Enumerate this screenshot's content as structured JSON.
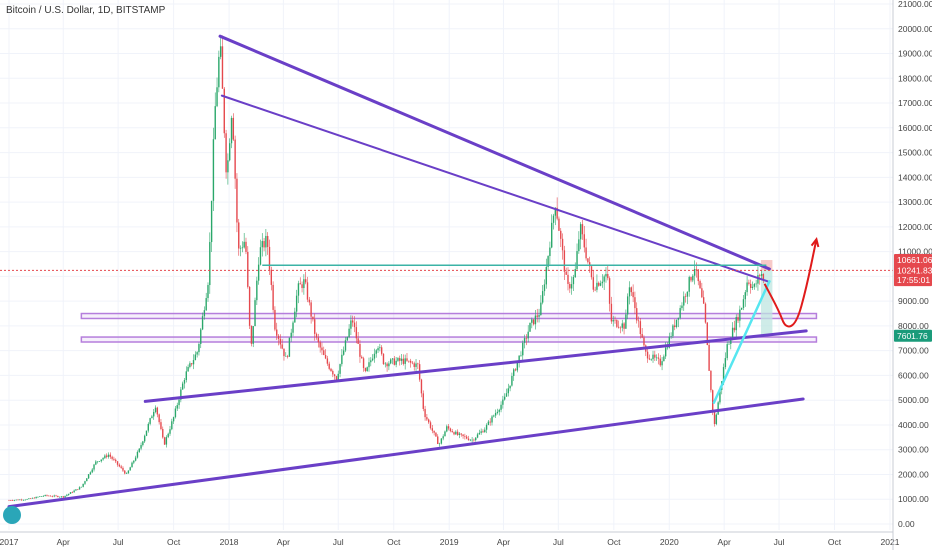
{
  "header": {
    "symbol_title": "Bitcoin / U.S. Dollar, 1D, BITSTAMP"
  },
  "colors": {
    "up_candle": "#2aa76a",
    "down_candle": "#e5484d",
    "trendline": "#6a3fc7",
    "channel_box": "#b57edc",
    "teal_line": "#3bb3a6",
    "cyan_trend": "#56e6f0",
    "projection": "#e01b1b",
    "current_price_line": "#e5484d",
    "short_zone_top": "#f4b7b4",
    "short_zone_bottom": "#bfe6e0"
  },
  "chart_data": {
    "type": "candlestick",
    "title": "Bitcoin / U.S. Dollar, 1D, BITSTAMP",
    "x_ticks": [
      "2017",
      "Apr",
      "Jul",
      "Oct",
      "2018",
      "Apr",
      "Jul",
      "Oct",
      "2019",
      "Apr",
      "Jul",
      "Oct",
      "2020",
      "Apr",
      "Jul",
      "Oct",
      "2021"
    ],
    "y_ticks": [
      "21000.00",
      "20000.00",
      "19000.00",
      "18000.00",
      "17000.00",
      "16000.00",
      "15000.00",
      "14000.00",
      "13000.00",
      "12000.00",
      "11000.00",
      "10000.00",
      "9000.00",
      "8000.00",
      "7000.00",
      "6000.00",
      "5000.00",
      "4000.00",
      "3000.00",
      "2000.00",
      "1000.00",
      "0.00"
    ],
    "ylim": [
      0,
      21000
    ],
    "price_labels": [
      {
        "text": "10661.06",
        "color": "#e5484d",
        "value": 10661.06
      },
      {
        "text": "10241.83",
        "color": "#e5484d",
        "value": 10241.83
      },
      {
        "text": "17:55:01",
        "color": "#e5484d",
        "value": 9850
      },
      {
        "text": "7601.76",
        "color": "#1a9b7a",
        "value": 7601.76
      }
    ],
    "price_path": [
      [
        "2017-01-01",
        960
      ],
      [
        "2017-02-01",
        1000
      ],
      [
        "2017-03-01",
        1150
      ],
      [
        "2017-04-01",
        1100
      ],
      [
        "2017-05-01",
        1500
      ],
      [
        "2017-05-25",
        2500
      ],
      [
        "2017-06-15",
        2800
      ],
      [
        "2017-07-15",
        2000
      ],
      [
        "2017-08-05",
        3000
      ],
      [
        "2017-09-01",
        4800
      ],
      [
        "2017-09-15",
        3200
      ],
      [
        "2017-10-01",
        4300
      ],
      [
        "2017-10-20",
        6000
      ],
      [
        "2017-11-10",
        7000
      ],
      [
        "2017-11-28",
        10000
      ],
      [
        "2017-12-08",
        16500
      ],
      [
        "2017-12-17",
        19400
      ],
      [
        "2017-12-28",
        14000
      ],
      [
        "2018-01-06",
        17000
      ],
      [
        "2018-01-16",
        11000
      ],
      [
        "2018-01-28",
        11500
      ],
      [
        "2018-02-06",
        6900
      ],
      [
        "2018-02-20",
        11000
      ],
      [
        "2018-03-05",
        11500
      ],
      [
        "2018-03-18",
        8000
      ],
      [
        "2018-04-06",
        6600
      ],
      [
        "2018-04-25",
        9500
      ],
      [
        "2018-05-06",
        9800
      ],
      [
        "2018-05-25",
        7500
      ],
      [
        "2018-06-10",
        6600
      ],
      [
        "2018-06-28",
        5900
      ],
      [
        "2018-07-24",
        8300
      ],
      [
        "2018-08-14",
        6000
      ],
      [
        "2018-09-04",
        7300
      ],
      [
        "2018-09-15",
        6500
      ],
      [
        "2018-10-15",
        6600
      ],
      [
        "2018-11-10",
        6400
      ],
      [
        "2018-11-20",
        4500
      ],
      [
        "2018-12-15",
        3200
      ],
      [
        "2018-12-28",
        3900
      ],
      [
        "2019-01-15",
        3600
      ],
      [
        "2019-02-08",
        3400
      ],
      [
        "2019-03-01",
        3850
      ],
      [
        "2019-04-02",
        5000
      ],
      [
        "2019-05-15",
        8000
      ],
      [
        "2019-06-01",
        8600
      ],
      [
        "2019-06-26",
        13000
      ],
      [
        "2019-07-16",
        9500
      ],
      [
        "2019-07-28",
        10000
      ],
      [
        "2019-08-06",
        12000
      ],
      [
        "2019-08-28",
        9600
      ],
      [
        "2019-09-20",
        10100
      ],
      [
        "2019-09-26",
        8200
      ],
      [
        "2019-10-20",
        8000
      ],
      [
        "2019-10-26",
        9800
      ],
      [
        "2019-11-22",
        6900
      ],
      [
        "2019-12-17",
        6500
      ],
      [
        "2020-01-06",
        7800
      ],
      [
        "2020-02-12",
        10400
      ],
      [
        "2020-02-28",
        8600
      ],
      [
        "2020-03-12",
        4800
      ],
      [
        "2020-03-16",
        4000
      ],
      [
        "2020-04-06",
        7200
      ],
      [
        "2020-04-30",
        8800
      ],
      [
        "2020-05-10",
        9900
      ],
      [
        "2020-05-20",
        9500
      ],
      [
        "2020-06-01",
        10200
      ],
      [
        "2020-06-07",
        9600
      ]
    ]
  },
  "annotations": {
    "trendlines": [
      {
        "name": "upper-downtrend",
        "from": [
          "2017-12-17",
          19700
        ],
        "to": [
          "2020-06-15",
          10300
        ],
        "weight": "thick"
      },
      {
        "name": "inner-downtrend",
        "from": [
          "2017-12-20",
          17300
        ],
        "to": [
          "2020-06-12",
          9800
        ],
        "weight": "thin"
      },
      {
        "name": "mid-uptrend",
        "from": [
          "2017-08-15",
          4950
        ],
        "to": [
          "2020-08-15",
          7800
        ],
        "weight": "thick"
      },
      {
        "name": "lower-uptrend",
        "from": [
          "2017-01-01",
          700
        ],
        "to": [
          "2020-08-10",
          5050
        ],
        "weight": "thick"
      }
    ],
    "horizontal_zones": [
      {
        "name": "upper-zone",
        "from": "2017-05-01",
        "to": "2020-09-01",
        "low": 8300,
        "high": 8500
      },
      {
        "name": "lower-zone",
        "from": "2017-05-01",
        "to": "2020-09-01",
        "low": 7350,
        "high": 7550
      }
    ],
    "resistance_line": {
      "from": "2018-02-25",
      "to": "2020-06-10",
      "value": 10450
    },
    "cyan_trend": {
      "from": [
        "2020-03-15",
        4900
      ],
      "to": [
        "2020-06-15",
        9800
      ]
    },
    "projection_path": [
      [
        "2020-06-07",
        9700
      ],
      [
        "2020-07-01",
        8600
      ],
      [
        "2020-07-12",
        7900
      ],
      [
        "2020-07-30",
        8100
      ],
      [
        "2020-08-15",
        9500
      ],
      [
        "2020-09-01",
        11500
      ]
    ],
    "short_position": {
      "from": "2020-06-01",
      "to": "2020-06-20",
      "stop": 10661.06,
      "entry": 10241.83,
      "target": 7601.76
    }
  }
}
